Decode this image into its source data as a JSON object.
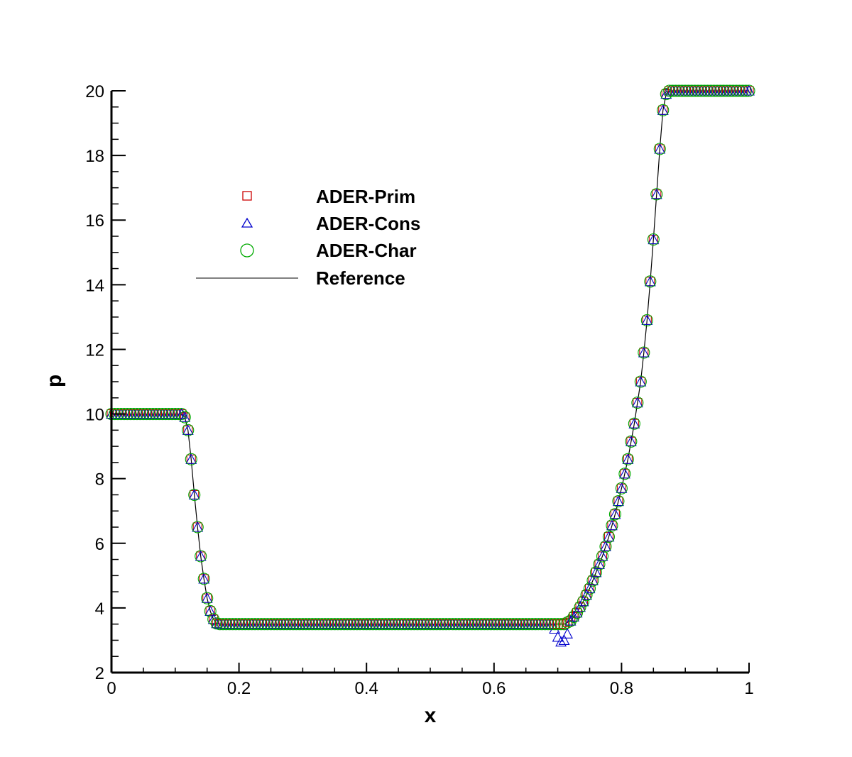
{
  "chart_data": {
    "type": "scatter",
    "xlabel": "x",
    "ylabel": "p",
    "xlim": [
      0,
      1
    ],
    "ylim": [
      2,
      20
    ],
    "xticks": [
      0,
      0.2,
      0.4,
      0.6,
      0.8,
      1
    ],
    "xtick_labels": [
      "0",
      "0.2",
      "0.4",
      "0.6",
      "0.8",
      "1"
    ],
    "yticks": [
      2,
      4,
      6,
      8,
      10,
      12,
      14,
      16,
      18,
      20
    ],
    "ytick_labels": [
      "2",
      "4",
      "6",
      "8",
      "10",
      "12",
      "14",
      "16",
      "18",
      "20"
    ],
    "grid": false,
    "legend_position": "upper-left",
    "series": [
      {
        "name": "ADER-Prim",
        "marker": "square",
        "color": "#cc0000",
        "style": "markers"
      },
      {
        "name": "ADER-Cons",
        "marker": "triangle",
        "color": "#0000cc",
        "style": "markers"
      },
      {
        "name": "ADER-Char",
        "marker": "circle",
        "color": "#00aa00",
        "style": "markers"
      },
      {
        "name": "Reference",
        "color": "#000000",
        "style": "line"
      }
    ],
    "reference_curve": {
      "x": [
        0,
        0.11,
        0.115,
        0.12,
        0.125,
        0.13,
        0.135,
        0.14,
        0.145,
        0.15,
        0.155,
        0.16,
        0.165,
        0.17,
        0.7,
        0.705,
        0.71,
        0.72,
        0.73,
        0.74,
        0.75,
        0.76,
        0.77,
        0.78,
        0.79,
        0.8,
        0.81,
        0.82,
        0.83,
        0.835,
        0.84,
        0.845,
        0.85,
        0.855,
        0.86,
        0.865,
        0.87,
        0.875,
        1.0
      ],
      "y": [
        10,
        10,
        9.9,
        9.5,
        8.6,
        7.5,
        6.5,
        5.6,
        4.9,
        4.3,
        3.9,
        3.65,
        3.52,
        3.5,
        3.5,
        3.5,
        3.5,
        3.6,
        3.85,
        4.2,
        4.6,
        5.1,
        5.6,
        6.2,
        6.9,
        7.7,
        8.6,
        9.7,
        11.0,
        11.9,
        12.9,
        14.1,
        15.4,
        16.8,
        18.2,
        19.4,
        19.9,
        20,
        20
      ]
    },
    "cons_undershoot": {
      "x": [
        0.695,
        0.7,
        0.705,
        0.71,
        0.715
      ],
      "y": [
        3.35,
        3.1,
        2.95,
        3.0,
        3.2
      ]
    },
    "marker_spacing": 0.005
  }
}
